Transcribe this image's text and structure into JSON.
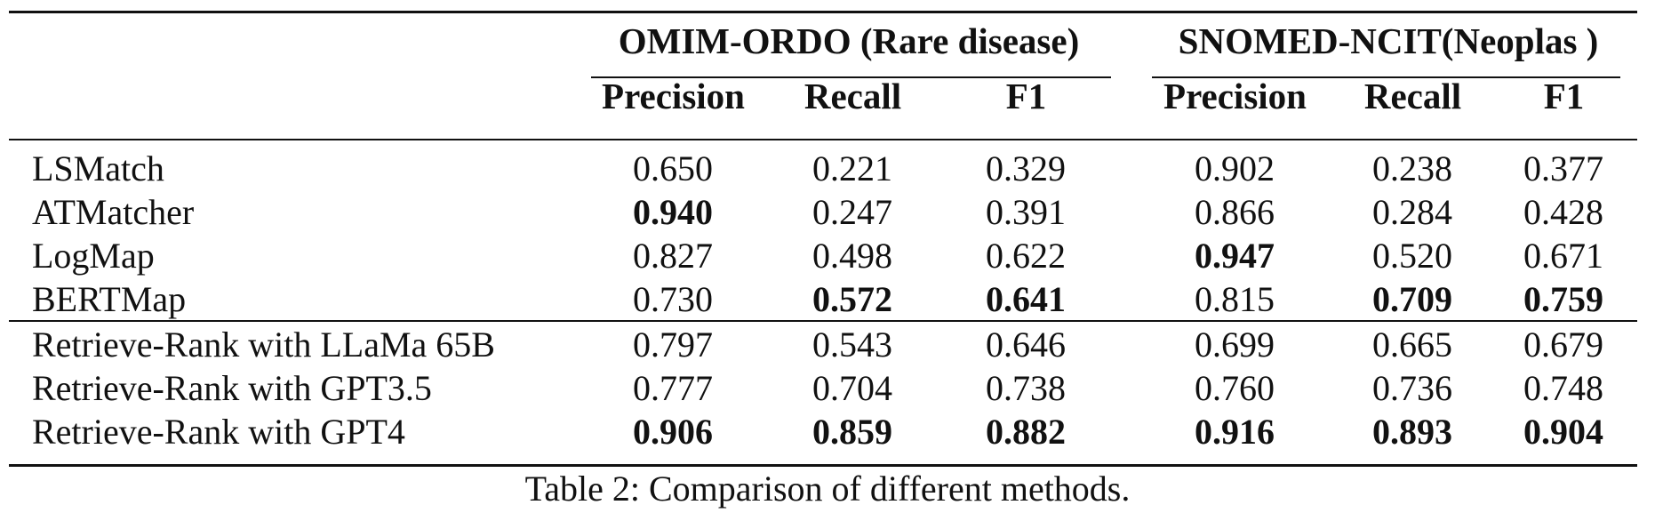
{
  "table": {
    "groups": [
      "OMIM-ORDO (Rare disease)",
      "SNOMED-NCIT(Neoplas )"
    ],
    "columns": [
      "Precision",
      "Recall",
      "F1",
      "Precision",
      "Recall",
      "F1"
    ],
    "rows": [
      {
        "method": "LSMatch",
        "values": [
          "0.650",
          "0.221",
          "0.329",
          "0.902",
          "0.238",
          "0.377"
        ],
        "bold": [
          false,
          false,
          false,
          false,
          false,
          false
        ]
      },
      {
        "method": "ATMatcher",
        "values": [
          "0.940",
          "0.247",
          "0.391",
          "0.866",
          "0.284",
          "0.428"
        ],
        "bold": [
          true,
          false,
          false,
          false,
          false,
          false
        ]
      },
      {
        "method": "LogMap",
        "values": [
          "0.827",
          "0.498",
          "0.622",
          "0.947",
          "0.520",
          "0.671"
        ],
        "bold": [
          false,
          false,
          false,
          true,
          false,
          false
        ]
      },
      {
        "method": "BERTMap",
        "values": [
          "0.730",
          "0.572",
          "0.641",
          "0.815",
          "0.709",
          "0.759"
        ],
        "bold": [
          false,
          true,
          true,
          false,
          true,
          true
        ]
      },
      {
        "method": "Retrieve-Rank with LLaMa 65B",
        "values": [
          "0.797",
          "0.543",
          "0.646",
          "0.699",
          "0.665",
          "0.679"
        ],
        "bold": [
          false,
          false,
          false,
          false,
          false,
          false
        ]
      },
      {
        "method": "Retrieve-Rank with GPT3.5",
        "values": [
          "0.777",
          "0.704",
          "0.738",
          "0.760",
          "0.736",
          "0.748"
        ],
        "bold": [
          false,
          false,
          false,
          false,
          false,
          false
        ]
      },
      {
        "method": "Retrieve-Rank with GPT4",
        "values": [
          "0.906",
          "0.859",
          "0.882",
          "0.916",
          "0.893",
          "0.904"
        ],
        "bold": [
          true,
          true,
          true,
          true,
          true,
          true
        ]
      }
    ],
    "caption": "Table 2: Comparison of different methods."
  }
}
